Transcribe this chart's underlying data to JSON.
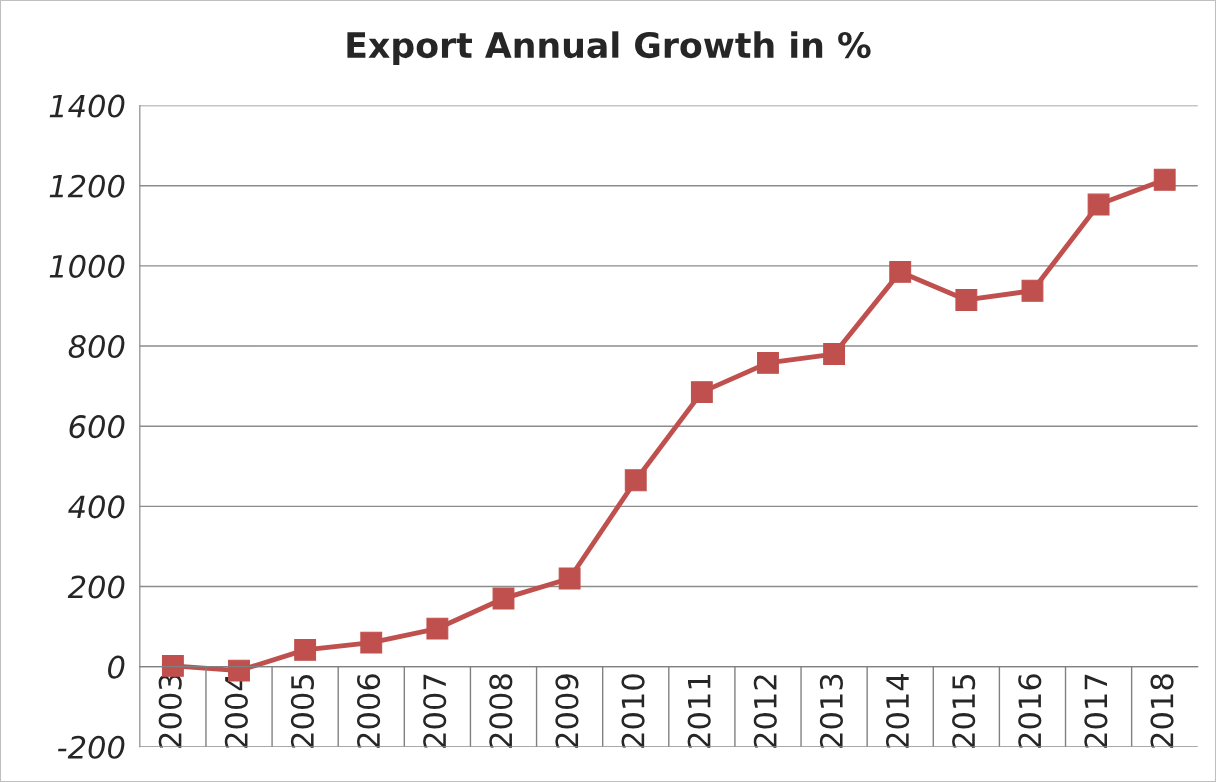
{
  "chart_data": {
    "type": "line",
    "title": "Export Annual Growth in %",
    "categories": [
      "2003",
      "2004",
      "2005",
      "2006",
      "2007",
      "2008",
      "2009",
      "2010",
      "2011",
      "2012",
      "2013",
      "2014",
      "2015",
      "2016",
      "2017",
      "2018"
    ],
    "series": [
      {
        "color": "#c0504d",
        "values": [
          2,
          -10,
          42,
          60,
          95,
          170,
          220,
          465,
          685,
          758,
          780,
          985,
          915,
          938,
          1153,
          1215
        ]
      }
    ],
    "ylim": [
      -200,
      1400
    ],
    "yticks": [
      -200,
      0,
      200,
      400,
      600,
      800,
      1000,
      1200,
      1400
    ],
    "grid": "y",
    "marker": "square",
    "line_style": "solid",
    "legend": false
  }
}
